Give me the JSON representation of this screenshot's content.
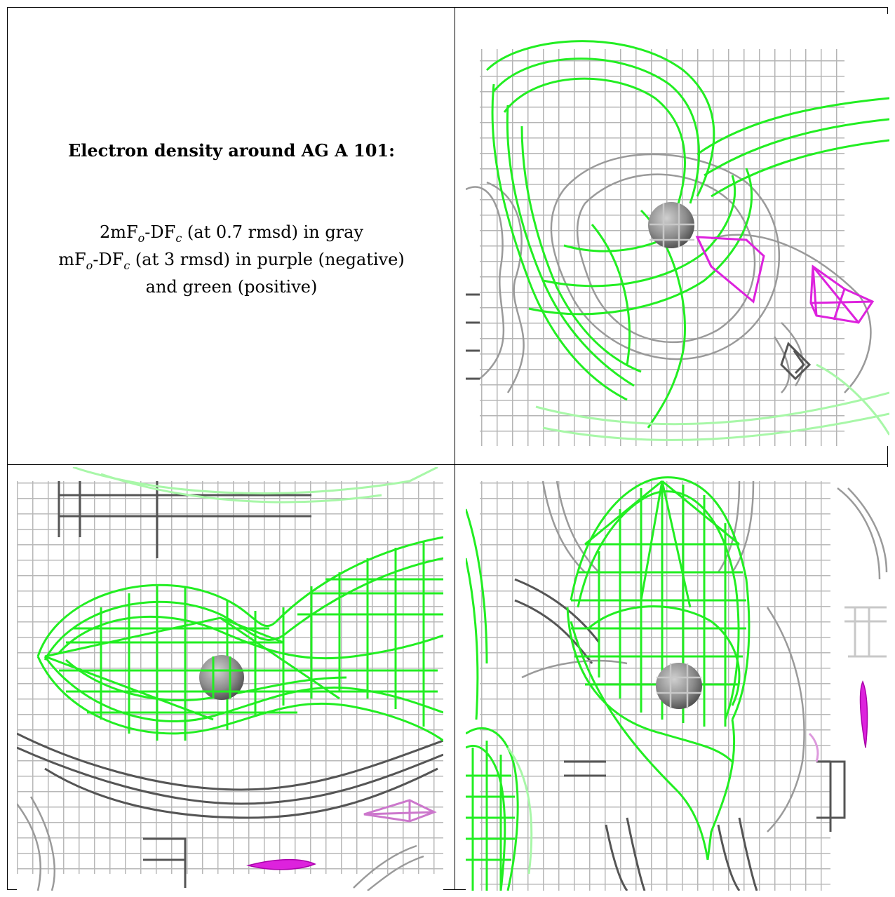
{
  "caption": {
    "title": "Electron density around AG A 101:",
    "line1": {
      "prefix": "2mF",
      "sub1": "o",
      "mid": "-DF",
      "sub2": "c",
      "suffix": " (at 0.7 rmsd) in gray"
    },
    "line2": {
      "prefix": "mF",
      "sub1": "o",
      "mid": "-DF",
      "sub2": "c",
      "suffix": " (at 3 rmsd) in purple (negative)"
    },
    "line3": "and green (positive)"
  },
  "colors": {
    "gray_mesh": "#b5b5b5",
    "dark_mesh": "#555555",
    "green_mesh": "#22ee22",
    "purple_mesh": "#dd22dd",
    "atom": "#8c8c8c"
  },
  "panels": [
    {
      "id": "top-right",
      "view": "density-view-1"
    },
    {
      "id": "bottom-left",
      "view": "density-view-2"
    },
    {
      "id": "bottom-right",
      "view": "density-view-3"
    }
  ]
}
